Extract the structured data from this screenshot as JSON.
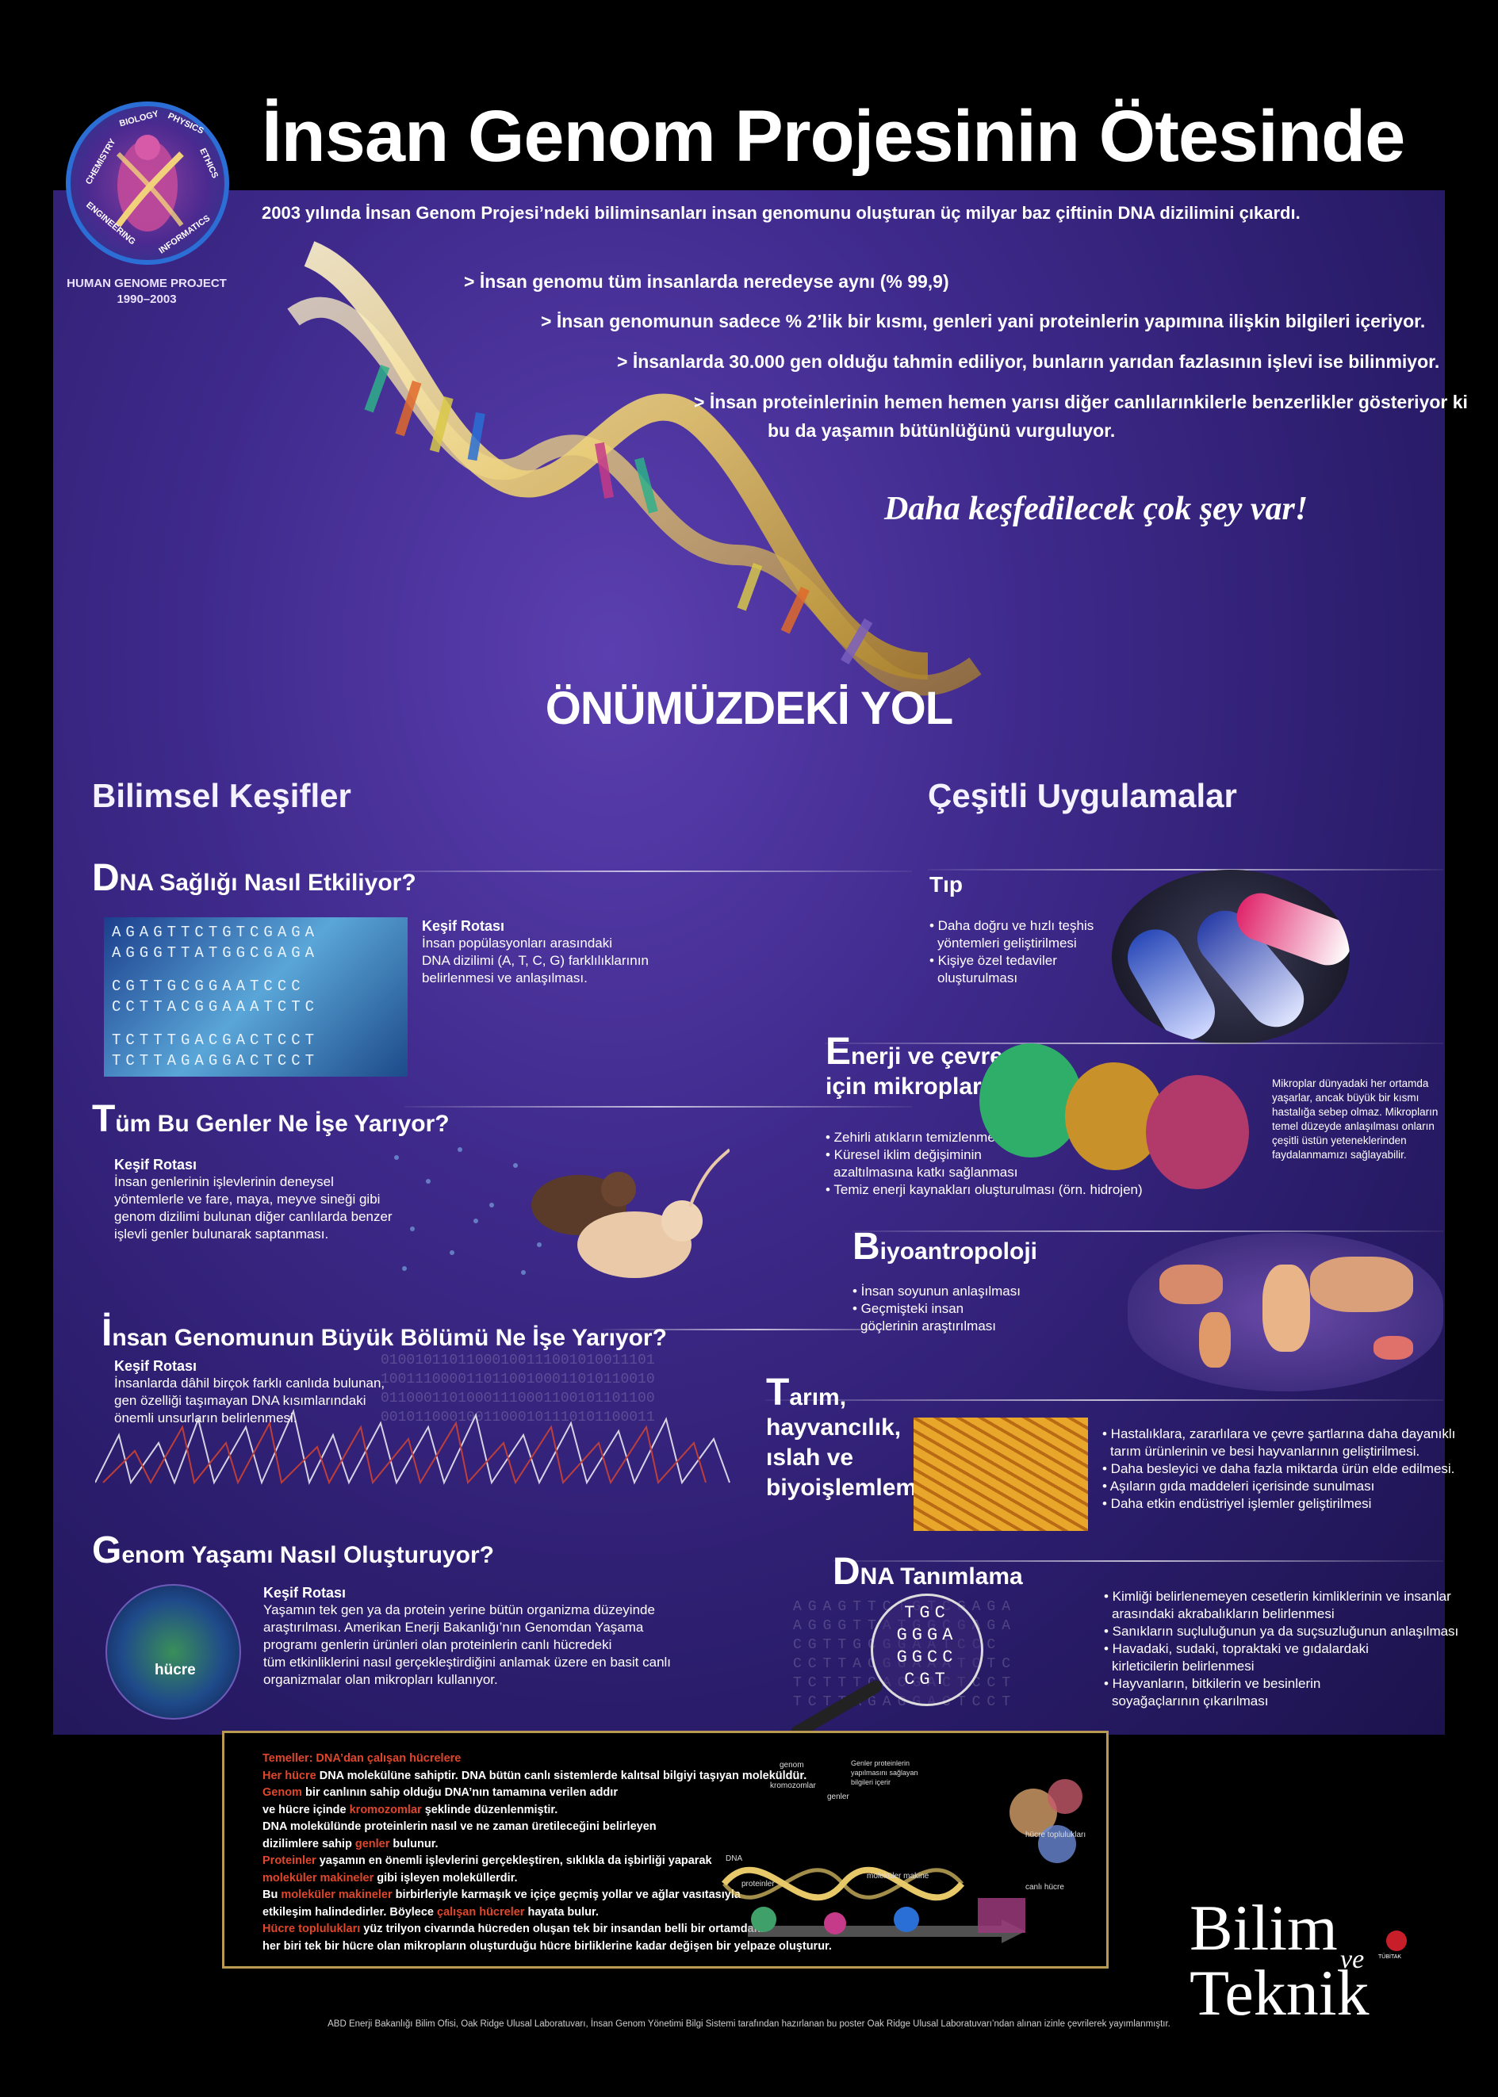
{
  "header": {
    "title": "İnsan Genom Projesinin Ötesinde",
    "logo_ring": [
      "CHEMISTRY",
      "BIOLOGY",
      "PHYSICS",
      "ETHICS",
      "INFORMATICS",
      "ENGINEERING"
    ],
    "logo_caption_line1": "HUMAN GENOME PROJECT",
    "logo_caption_line2": "1990–2003"
  },
  "intro": "2003 yılında İnsan Genom Projesi’ndeki biliminsanları insan genomunu oluşturan üç milyar baz çiftinin DNA dizilimini çıkardı.",
  "bullets": [
    "> İnsan genomu tüm insanlarda neredeyse aynı (% 99,9)",
    "> İnsan genomunun sadece % 2’lik bir kısmı, genleri yani proteinlerin yapımına ilişkin bilgileri içeriyor.",
    "> İnsanlarda 30.000 gen olduğu tahmin ediliyor, bunların yarıdan fazlasının işlevi ise bilinmiyor.",
    "> İnsan proteinlerinin hemen hemen yarısı diğer canlılarınkilerle benzerlikler gösteriyor ki",
    "bu da yaşamın bütünlüğünü vurguluyor."
  ],
  "slogan": "Daha keşfedilecek çok şey var!",
  "road_title": "ÖNÜMÜZDEKİ YOL",
  "left": {
    "heading": "Bilimsel Keşifler",
    "s1": {
      "first": "D",
      "rest": "NA Sağlığı Nasıl Etkiliyor?",
      "label": "Keşif Rotası",
      "text": [
        "İnsan popülasyonları arasındaki",
        "DNA dizilimi (A, T, C, G) farklılıklarının",
        "belirlenmesi ve anlaşılması."
      ],
      "grid": [
        "AGAGTTCTGTCGAGA",
        "AGGGTTATGGCGAGA",
        "CGTTGCGGAATCCC",
        "CCTTACGGAAATCTC",
        "TCTTTGACGACTCCT",
        "TCTTAGAGGACTCCT"
      ]
    },
    "s2": {
      "first": "T",
      "rest": "üm Bu Genler Ne İşe Yarıyor?",
      "label": "Keşif Rotası",
      "text": [
        "İnsan genlerinin işlevlerinin deneysel",
        "yöntemlerle ve fare, maya, meyve sineği gibi",
        "genom dizilimi bulunan diğer canlılarda benzer",
        "işlevli genler bulunarak saptanması."
      ]
    },
    "s3": {
      "first": "İ",
      "rest": "nsan Genomunun Büyük Bölümü Ne İşe Yarıyor?",
      "label": "Keşif Rotası",
      "text": [
        "İnsanlarda dâhil birçok farklı canlıda bulunan,",
        "gen özelliği taşımayan DNA kısımlarındaki",
        "önemli unsurların belirlenmesi."
      ]
    },
    "s4": {
      "first": "G",
      "rest": "enom Yaşamı Nasıl Oluşturuyor?",
      "label": "Keşif Rotası",
      "text": [
        "Yaşamın tek gen  ya da protein yerine  bütün organizma düzeyinde",
        "araştırılması. Amerikan Enerji Bakanlığı’nın Genomdan Yaşama",
        "programı  genlerin ürünleri olan proteinlerin canlı hücredeki",
        "tüm etkinliklerini nasıl gerçekleştirdiğini anlamak üzere en basit canlı",
        "organizmalar olan mikropları kullanıyor."
      ],
      "cell_label": "hücre"
    }
  },
  "right": {
    "heading": "Çeşitli Uygulamalar",
    "tip": {
      "title": "Tıp",
      "items": [
        "• Daha doğru ve hızlı teşhis",
        "yöntemleri geliştirilmesi",
        "• Kişiye özel tedaviler",
        "oluşturulması"
      ]
    },
    "energy": {
      "first": "E",
      "rest1": "nerji ve çevre",
      "rest2": "için mikroplar",
      "items": [
        "• Zehirli atıkların temizlenmesi",
        "• Küresel iklim değişiminin",
        "azaltılmasına katkı sağlanması",
        "• Temiz enerji kaynakları oluşturulması (örn. hidrojen)"
      ],
      "note": [
        "Mikroplar dünyadaki her ortamda",
        "yaşarlar, ancak büyük bir kısmı",
        "hastalığa sebep olmaz. Mikropların",
        "temel düzeyde anlaşılması onların",
        "çeşitli üstün yeteneklerinden",
        "faydalanmamızı sağlayabilir."
      ]
    },
    "bio": {
      "first": "B",
      "rest": "iyoantropoloji",
      "items": [
        "• İnsan soyunun anlaşılması",
        "• Geçmişteki insan",
        "göçlerinin araştırılması"
      ]
    },
    "agri": {
      "first": "T",
      "rest": [
        "arım,",
        "hayvancılık,",
        "ıslah ve",
        "biyoişlemleme"
      ],
      "items": [
        "• Hastalıklara, zararlılara ve çevre şartlarına daha dayanıklı",
        "tarım ürünlerinin ve besi hayvanlarının geliştirilmesi.",
        "• Daha besleyici ve daha fazla miktarda ürün elde edilmesi.",
        "• Aşıların gıda maddeleri içerisinde sunulması",
        "• Daha etkin endüstriyel işlemler geliştirilmesi"
      ]
    },
    "ident": {
      "first": "D",
      "rest": "NA Tanımlama",
      "items": [
        "• Kimliği belirlenemeyen cesetlerin kimliklerinin ve insanlar",
        "arasındaki akrabalıkların belirlenmesi",
        "• Sanıkların suçluluğunun ya da suçsuzluğunun anlaşılması",
        "• Havadaki, sudaki, topraktaki ve gıdalardaki",
        "kirleticilerin belirlenmesi",
        "• Hayvanların, bitkilerin ve besinlerin",
        "soyağaçlarının çıkarılması"
      ],
      "lens": [
        "TGC",
        "GGGA",
        "GGCC",
        "CGT"
      ]
    }
  },
  "box": {
    "title": "Temeller: DNA’dan çalışan hücrelere",
    "lines": [
      {
        "a": "Her hücre",
        "b": " DNA molekülüne sahiptir. DNA bütün canlı sistemlerde kalıtsal bilgiyi taşıyan moleküldür."
      },
      {
        "a": "Genom",
        "b": " bir canlının sahip olduğu DNA’nın tamamına verilen addır"
      },
      {
        "a": "",
        "b": "ve hücre içinde ",
        "c": "kromozomlar",
        "d": " şeklinde düzenlenmiştir."
      },
      {
        "a": "",
        "b": "DNA molekülünde  proteinlerin nasıl ve ne zaman üretileceğini belirleyen"
      },
      {
        "a": "",
        "b": "dizilimlere sahip ",
        "c": "genler",
        "d": " bulunur."
      },
      {
        "a": "Proteinler",
        "b": " yaşamın en önemli işlevlerini gerçekleştiren, sıklıkla da işbirliği yaparak"
      },
      {
        "a": "moleküler makineler",
        "b": " gibi işleyen moleküllerdir."
      },
      {
        "a": "",
        "b": "Bu ",
        "c": "moleküler makineler",
        "d": " birbirleriyle karmaşık ve içiçe geçmiş yollar ve ağlar vasıtasıyla"
      },
      {
        "a": "",
        "b": "etkileşim halindedirler. Böylece ",
        "c": "çalışan hücreler",
        "d": " hayata bulur."
      },
      {
        "a": "Hücre toplulukları",
        "b": " yüz trilyon civarında hücreden oluşan tek bir insandan belli bir ortamdaki"
      },
      {
        "a": "",
        "b": "her biri tek bir hücre olan mikropların oluşturduğu hücre birliklerine kadar değişen bir yelpaze oluşturur."
      }
    ],
    "diagram_labels": [
      "genom",
      "kromozomlar",
      "genler",
      "Genler proteinlerin",
      "yapılmasını sağlayan",
      "bilgileri içerir",
      "DNA",
      "proteinler",
      "moleküler makine",
      "hücre toplulukları",
      "canlı hücre"
    ]
  },
  "brand": {
    "line1": "Bilim",
    "ve": "ve",
    "line2": "Teknik",
    "badge": "TÜBİTAK"
  },
  "footer": "ABD Enerji Bakanlığı Bilim Ofisi, Oak Ridge Ulusal Laboratuvarı, İnsan Genom Yönetimi Bilgi Sistemi tarafından hazırlanan bu poster Oak Ridge Ulusal Laboratuvarı’ndan alınan izinle çevrilerek yayımlanmıştır.",
  "colors": {
    "background": "#000000",
    "panel": "#3f2a8c",
    "accent_red": "#e0462b",
    "box_border": "#b89a52",
    "gold": "#e8c96a"
  }
}
